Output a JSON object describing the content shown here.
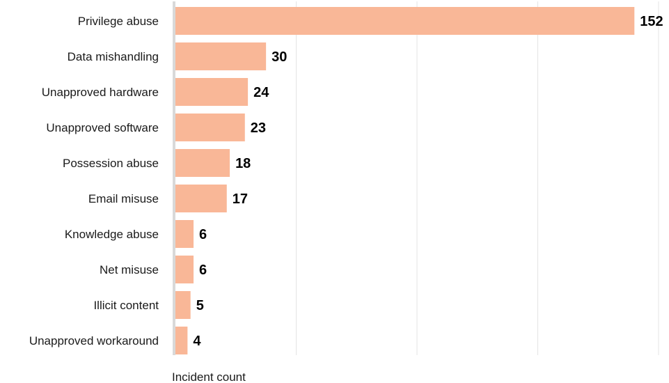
{
  "chart_data": {
    "type": "bar",
    "orientation": "horizontal",
    "categories": [
      "Privilege abuse",
      "Data mishandling",
      "Unapproved hardware",
      "Unapproved software",
      "Possession abuse",
      "Email misuse",
      "Knowledge abuse",
      "Net misuse",
      "Illicit content",
      "Unapproved workaround"
    ],
    "values": [
      152,
      30,
      24,
      23,
      18,
      17,
      6,
      6,
      5,
      4
    ],
    "title": "",
    "xlabel": "Incident count",
    "ylabel": "",
    "xlim": [
      0,
      160
    ],
    "grid": true,
    "grid_values": [
      40,
      80,
      120,
      160
    ],
    "show_tick_labels": false,
    "legend": "none",
    "colors": {
      "bar": "#f9b797",
      "grid": "#e4e4e4",
      "axis": "#d9d9d9",
      "label": "#1a1a1a",
      "value": "#000000"
    }
  }
}
